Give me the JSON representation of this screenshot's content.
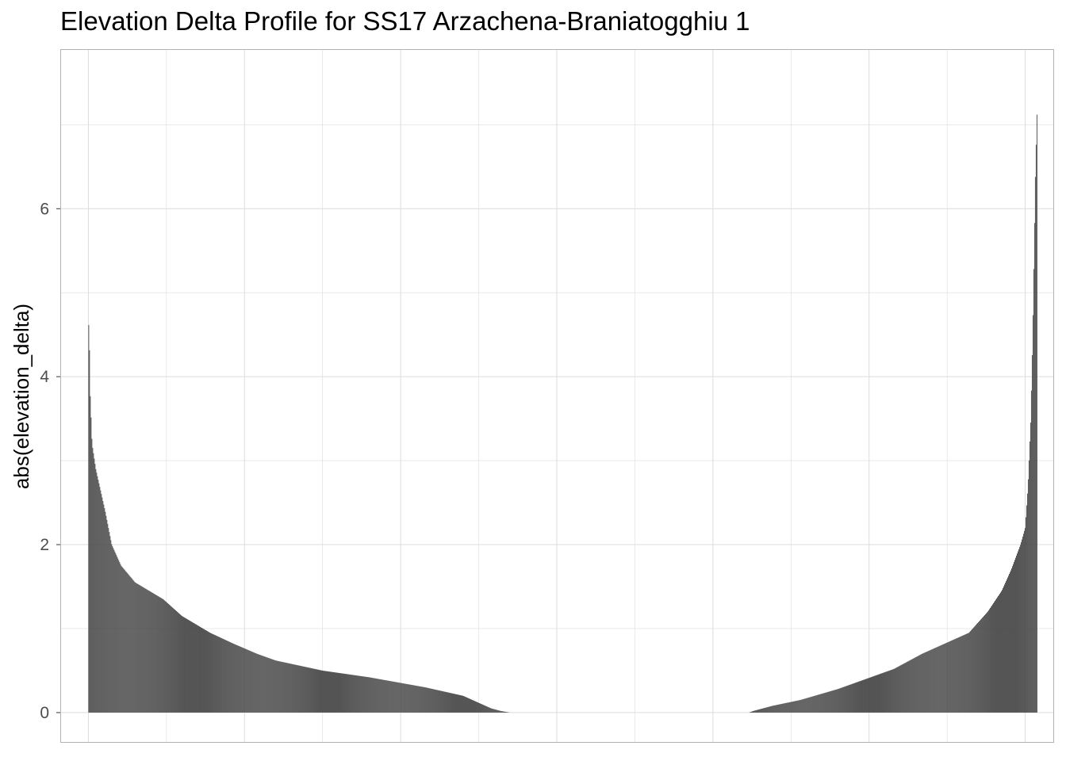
{
  "chart_data": {
    "type": "bar",
    "title": "Elevation Delta Profile for SS17 Arzachena-Braniatogghiu 1",
    "xlabel": "",
    "ylabel": "abs(elevation_delta)",
    "ylim": [
      -0.35,
      7.9
    ],
    "xlim": [
      -0.03,
      1.03
    ],
    "y_ticks": [
      0,
      2,
      4,
      6
    ],
    "grid": true,
    "legend": "none",
    "bar_color": "#474747",
    "grid_color": "#dcdcdc",
    "panel_border_color": "#b3b3b3",
    "n_bars": 1200,
    "x_start": 0.0,
    "x_end": 1.0,
    "profile_points": [
      [
        0.0,
        4.7
      ],
      [
        0.001,
        4.5
      ],
      [
        0.002,
        3.8
      ],
      [
        0.004,
        3.2
      ],
      [
        0.008,
        2.9
      ],
      [
        0.012,
        2.7
      ],
      [
        0.018,
        2.4
      ],
      [
        0.025,
        2.0
      ],
      [
        0.035,
        1.75
      ],
      [
        0.05,
        1.55
      ],
      [
        0.08,
        1.35
      ],
      [
        0.1,
        1.15
      ],
      [
        0.13,
        0.95
      ],
      [
        0.155,
        0.82
      ],
      [
        0.18,
        0.7
      ],
      [
        0.2,
        0.62
      ],
      [
        0.25,
        0.5
      ],
      [
        0.3,
        0.42
      ],
      [
        0.33,
        0.36
      ],
      [
        0.36,
        0.3
      ],
      [
        0.4,
        0.2
      ],
      [
        0.42,
        0.1
      ],
      [
        0.43,
        0.05
      ],
      [
        0.44,
        0.02
      ],
      [
        0.45,
        0.0
      ],
      [
        0.705,
        0.0
      ],
      [
        0.71,
        0.02
      ],
      [
        0.73,
        0.08
      ],
      [
        0.76,
        0.15
      ],
      [
        0.8,
        0.28
      ],
      [
        0.83,
        0.4
      ],
      [
        0.86,
        0.52
      ],
      [
        0.89,
        0.7
      ],
      [
        0.94,
        0.95
      ],
      [
        0.96,
        1.2
      ],
      [
        0.975,
        1.45
      ],
      [
        0.985,
        1.7
      ],
      [
        0.995,
        2.0
      ],
      [
        1.0,
        2.2
      ],
      [
        1.003,
        2.7
      ],
      [
        1.006,
        3.5
      ],
      [
        1.008,
        4.5
      ],
      [
        1.011,
        6.45
      ],
      [
        1.013,
        7.3
      ]
    ]
  }
}
